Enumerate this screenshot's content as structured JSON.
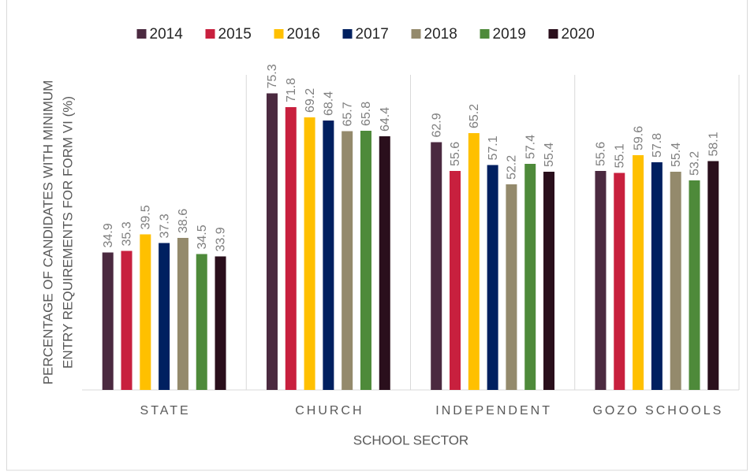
{
  "chart_data": {
    "type": "bar",
    "x_label": "SCHOOL SECTOR",
    "y_label": [
      "PERCENTAGE OF CANDIDATES WITH MINIMUM",
      "ENTRY REQUIREMENTS FOR FORM VI (%)"
    ],
    "categories": [
      "STATE",
      "CHURCH",
      "INDEPENDENT",
      "GOZO SCHOOLS"
    ],
    "series": [
      {
        "name": "2014",
        "color": "#4b2a40",
        "values": [
          34.9,
          75.3,
          62.9,
          55.6
        ]
      },
      {
        "name": "2015",
        "color": "#c8203e",
        "values": [
          35.3,
          71.8,
          55.6,
          55.1
        ]
      },
      {
        "name": "2016",
        "color": "#ffc000",
        "values": [
          39.5,
          69.2,
          65.2,
          59.6
        ]
      },
      {
        "name": "2017",
        "color": "#002060",
        "values": [
          37.3,
          68.4,
          57.1,
          57.8
        ]
      },
      {
        "name": "2018",
        "color": "#948a6c",
        "values": [
          38.6,
          65.7,
          52.2,
          55.4
        ]
      },
      {
        "name": "2019",
        "color": "#4e8a3a",
        "values": [
          34.5,
          65.8,
          57.4,
          53.2
        ]
      },
      {
        "name": "2020",
        "color": "#2a0f1c",
        "values": [
          33.9,
          64.4,
          55.4,
          58.1
        ]
      }
    ],
    "ylim": [
      0,
      80
    ],
    "legend": "top"
  }
}
